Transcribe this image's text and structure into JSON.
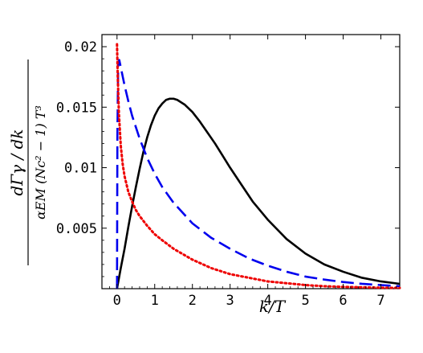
{
  "chart_data": {
    "type": "line",
    "title": "",
    "xlabel": "k/T",
    "ylabel": {
      "numerator": "dΓγ / dk",
      "denominator": "αEM (Nc² − 1) T³"
    },
    "xlim": [
      -0.4,
      7.5
    ],
    "ylim": [
      0,
      0.021
    ],
    "xticks": [
      "0",
      "1",
      "2",
      "3",
      "4",
      "5",
      "6",
      "7"
    ],
    "yticks": [
      "0.005",
      "0.01",
      "0.015",
      "0.02"
    ],
    "grid": false,
    "legend": "none",
    "series": [
      {
        "color": "#000000",
        "style": "solid",
        "points": [
          [
            0,
            0
          ],
          [
            0.1,
            0.0017
          ],
          [
            0.2,
            0.0033
          ],
          [
            0.3,
            0.0051
          ],
          [
            0.4,
            0.0068
          ],
          [
            0.5,
            0.0084
          ],
          [
            0.6,
            0.0099
          ],
          [
            0.7,
            0.0113
          ],
          [
            0.8,
            0.0125
          ],
          [
            0.9,
            0.0135
          ],
          [
            1.0,
            0.0143
          ],
          [
            1.1,
            0.0149
          ],
          [
            1.2,
            0.0153
          ],
          [
            1.3,
            0.0156
          ],
          [
            1.4,
            0.0157
          ],
          [
            1.5,
            0.0157
          ],
          [
            1.6,
            0.0156
          ],
          [
            1.8,
            0.0152
          ],
          [
            2.0,
            0.0146
          ],
          [
            2.2,
            0.0138
          ],
          [
            2.4,
            0.0129
          ],
          [
            2.6,
            0.012
          ],
          [
            2.8,
            0.011
          ],
          [
            3.0,
            0.01
          ],
          [
            3.3,
            0.0086
          ],
          [
            3.6,
            0.0072
          ],
          [
            4.0,
            0.0057
          ],
          [
            4.5,
            0.0041
          ],
          [
            5.0,
            0.0029
          ],
          [
            5.5,
            0.002
          ],
          [
            6.0,
            0.0014
          ],
          [
            6.5,
            0.0009
          ],
          [
            7.0,
            0.0006
          ],
          [
            7.5,
            0.0004
          ]
        ]
      },
      {
        "color": "#0000ee",
        "style": "dashed",
        "points": [
          [
            0,
            0
          ],
          [
            0.01,
            0.0125
          ],
          [
            0.03,
            0.0185
          ],
          [
            0.06,
            0.0189
          ],
          [
            0.1,
            0.0183
          ],
          [
            0.2,
            0.0168
          ],
          [
            0.3,
            0.0155
          ],
          [
            0.4,
            0.0143
          ],
          [
            0.6,
            0.0124
          ],
          [
            0.8,
            0.0108
          ],
          [
            1.0,
            0.0095
          ],
          [
            1.2,
            0.0084
          ],
          [
            1.5,
            0.0071
          ],
          [
            2.0,
            0.0054
          ],
          [
            2.5,
            0.0042
          ],
          [
            3.0,
            0.0033
          ],
          [
            3.5,
            0.0025
          ],
          [
            4.0,
            0.0019
          ],
          [
            4.5,
            0.0014
          ],
          [
            5.0,
            0.001
          ],
          [
            5.5,
            0.00075
          ],
          [
            6.0,
            0.00055
          ],
          [
            6.5,
            0.0004
          ],
          [
            7.0,
            0.0003
          ],
          [
            7.5,
            0.0002
          ]
        ]
      },
      {
        "color": "#ee0000",
        "style": "dotted",
        "points": [
          [
            0,
            0.0202
          ],
          [
            0.02,
            0.0175
          ],
          [
            0.05,
            0.0145
          ],
          [
            0.1,
            0.0118
          ],
          [
            0.15,
            0.0103
          ],
          [
            0.2,
            0.0093
          ],
          [
            0.3,
            0.008
          ],
          [
            0.4,
            0.0072
          ],
          [
            0.5,
            0.0065
          ],
          [
            0.6,
            0.006
          ],
          [
            0.8,
            0.0052
          ],
          [
            1.0,
            0.0045
          ],
          [
            1.2,
            0.004
          ],
          [
            1.5,
            0.0033
          ],
          [
            2.0,
            0.0024
          ],
          [
            2.5,
            0.0017
          ],
          [
            3.0,
            0.0012
          ],
          [
            3.5,
            0.0009
          ],
          [
            4.0,
            0.0006
          ],
          [
            4.5,
            0.00045
          ],
          [
            5.0,
            0.0003
          ],
          [
            5.5,
            0.0002
          ],
          [
            6.0,
            0.00015
          ],
          [
            7.0,
            8e-05
          ],
          [
            7.5,
            6e-05
          ]
        ]
      }
    ]
  }
}
